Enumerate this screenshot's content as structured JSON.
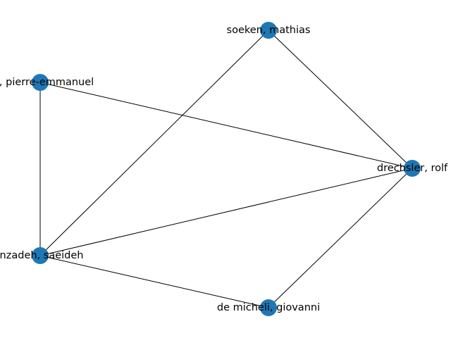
{
  "graph": {
    "node_color": "#1f77b4",
    "edge_color": "#000000",
    "nodes": [
      {
        "id": "soeken",
        "label": "soeken, mathias"
      },
      {
        "id": "pierre",
        "label": "on, pierre-emmanuel"
      },
      {
        "id": "drechsler",
        "label": "drechsler, rolf"
      },
      {
        "id": "saeideh",
        "label": "inzadeh, saeideh"
      },
      {
        "id": "demicheli",
        "label": "de micheli, giovanni"
      }
    ],
    "edges": [
      [
        "soeken",
        "drechsler"
      ],
      [
        "soeken",
        "saeideh"
      ],
      [
        "pierre",
        "drechsler"
      ],
      [
        "pierre",
        "saeideh"
      ],
      [
        "drechsler",
        "saeideh"
      ],
      [
        "drechsler",
        "demicheli"
      ],
      [
        "saeideh",
        "demicheli"
      ]
    ]
  }
}
